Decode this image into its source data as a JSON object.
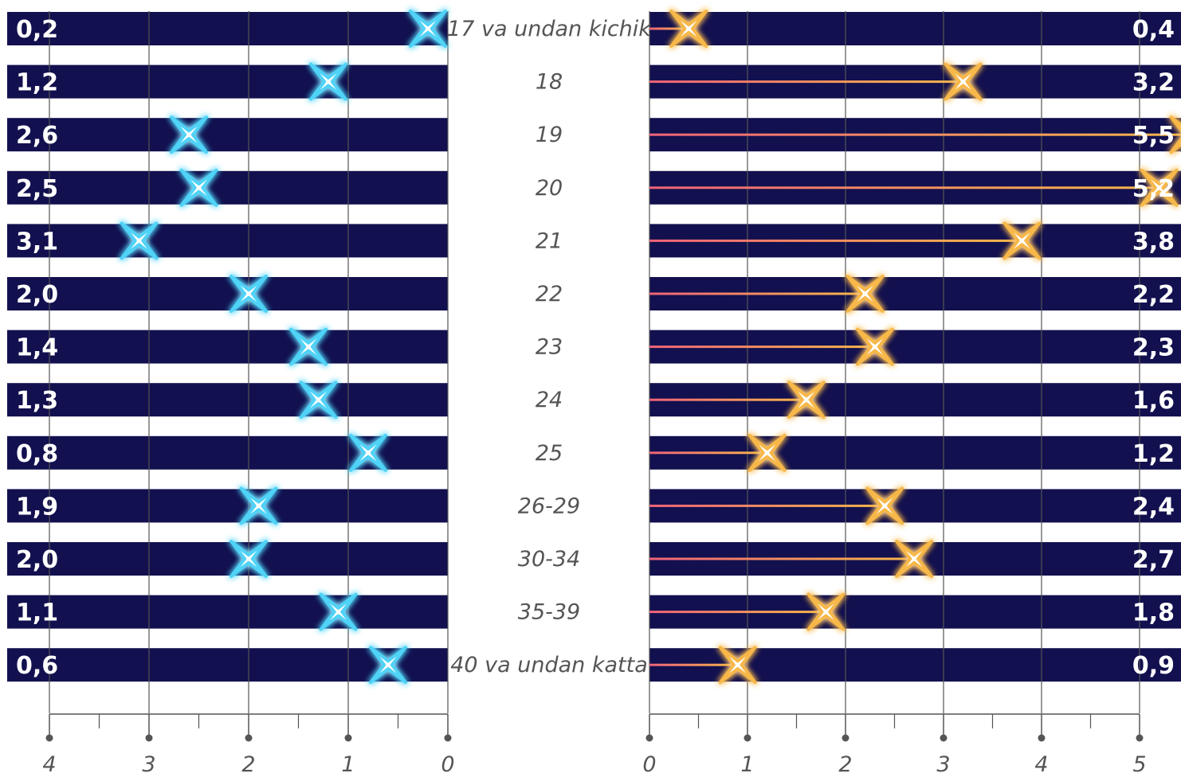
{
  "chart_data": {
    "type": "bar",
    "categories": [
      "17 va undan kichik",
      "18",
      "19",
      "20",
      "21",
      "22",
      "23",
      "24",
      "25",
      "26-29",
      "30-34",
      "35-39",
      "40 va undan katta"
    ],
    "series": [
      {
        "values": [
          0.2,
          1.2,
          2.6,
          2.5,
          3.1,
          2.0,
          1.4,
          1.3,
          0.8,
          1.9,
          2.0,
          1.1,
          0.6
        ]
      },
      {
        "values": [
          0.4,
          3.2,
          5.5,
          5.2,
          3.8,
          2.2,
          2.3,
          1.6,
          1.2,
          2.4,
          2.7,
          1.8,
          0.9
        ]
      }
    ],
    "value_labels": [
      [
        "0,2",
        "1,2",
        "2,6",
        "2,5",
        "3,1",
        "2,0",
        "1,4",
        "1,3",
        "0,8",
        "1,9",
        "2,0",
        "1,1",
        "0,6"
      ],
      [
        "0,4",
        "3,2",
        "5,5",
        "5,2",
        "3,8",
        "2,2",
        "2,3",
        "1,6",
        "1,2",
        "2,4",
        "2,7",
        "1,8",
        "0,9"
      ]
    ],
    "left_axis": {
      "ticks": [
        "4",
        "3",
        "2",
        "1",
        "0"
      ],
      "range": [
        0,
        4
      ]
    },
    "right_axis": {
      "ticks": [
        "0",
        "1",
        "2",
        "3",
        "4",
        "5"
      ],
      "range": [
        0,
        5
      ]
    },
    "grid": true,
    "colors": {
      "bar": "#12104f",
      "left_marker": "#4fd3f7",
      "left_line": "#1e7fd6",
      "right_marker": "#f7b84a",
      "right_line_start": "#f06478",
      "right_line_end": "#f7b84a",
      "grid": "#555555",
      "text": "#555555"
    }
  }
}
